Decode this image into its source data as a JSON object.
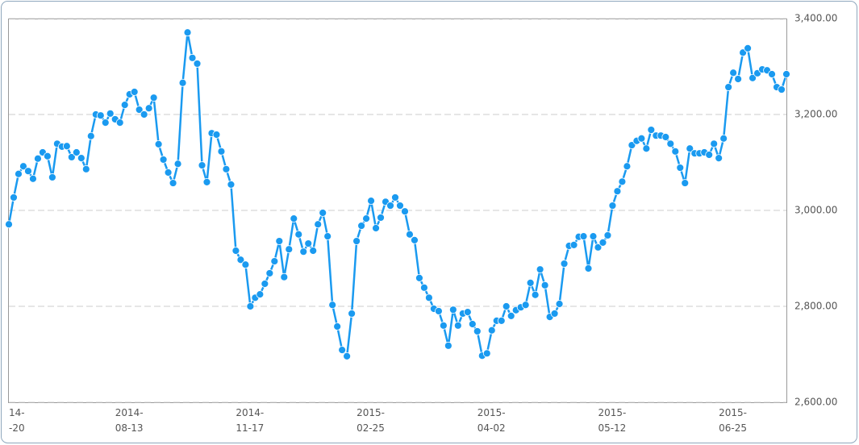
{
  "chart_data": {
    "type": "line",
    "categories": [
      "14-\n-20",
      null,
      null,
      null,
      null,
      null,
      null,
      null,
      null,
      null,
      null,
      null,
      null,
      null,
      null,
      null,
      null,
      null,
      null,
      null,
      null,
      null,
      null,
      null,
      null,
      "2014-\n08-13",
      null,
      null,
      null,
      null,
      null,
      null,
      null,
      null,
      null,
      null,
      null,
      null,
      null,
      null,
      null,
      null,
      null,
      null,
      null,
      null,
      null,
      null,
      null,
      null,
      "2014-\n11-17",
      null,
      null,
      null,
      null,
      null,
      null,
      null,
      null,
      null,
      null,
      null,
      null,
      null,
      null,
      null,
      null,
      null,
      null,
      null,
      null,
      null,
      null,
      null,
      null,
      "2015-\n02-25",
      null,
      null,
      null,
      null,
      null,
      null,
      null,
      null,
      null,
      null,
      null,
      null,
      null,
      null,
      null,
      null,
      null,
      null,
      null,
      null,
      null,
      null,
      null,
      null,
      "2015-\n04-02",
      null,
      null,
      null,
      null,
      null,
      null,
      null,
      null,
      null,
      null,
      null,
      null,
      null,
      null,
      null,
      null,
      null,
      null,
      null,
      null,
      null,
      null,
      null,
      null,
      "2015-\n05-12",
      null,
      null,
      null,
      null,
      null,
      null,
      null,
      null,
      null,
      null,
      null,
      null,
      null,
      null,
      null,
      null,
      null,
      null,
      null,
      null,
      null,
      null,
      null,
      null,
      "2015-\n06-25",
      null,
      null,
      null,
      null,
      null,
      null,
      null,
      null,
      null,
      null,
      null
    ],
    "series": [
      {
        "color": "#1a9af0",
        "values": [
          2971,
          3027,
          3076,
          3092,
          3082,
          3066,
          3108,
          3121,
          3113,
          3069,
          3139,
          3133,
          3134,
          3111,
          3121,
          3109,
          3086,
          3155,
          3200,
          3198,
          3183,
          3202,
          3190,
          3183,
          3220,
          3242,
          3247,
          3210,
          3200,
          3213,
          3235,
          3138,
          3106,
          3079,
          3057,
          3097,
          3266,
          3371,
          3318,
          3306,
          3094,
          3059,
          3161,
          3158,
          3123,
          3086,
          3054,
          2916,
          2897,
          2887,
          2800,
          2818,
          2825,
          2847,
          2869,
          2894,
          2936,
          2861,
          2919,
          2983,
          2950,
          2914,
          2931,
          2916,
          2971,
          2995,
          2946,
          2803,
          2758,
          2709,
          2696,
          2785,
          2936,
          2968,
          2983,
          3020,
          2963,
          2985,
          3018,
          3010,
          3027,
          3010,
          2998,
          2950,
          2938,
          2859,
          2839,
          2818,
          2795,
          2790,
          2760,
          2718,
          2793,
          2760,
          2785,
          2788,
          2763,
          2748,
          2697,
          2702,
          2750,
          2770,
          2770,
          2800,
          2780,
          2792,
          2798,
          2803,
          2849,
          2824,
          2877,
          2844,
          2778,
          2785,
          2805,
          2889,
          2926,
          2928,
          2945,
          2946,
          2879,
          2946,
          2923,
          2933,
          2948,
          3010,
          3040,
          3060,
          3092,
          3136,
          3145,
          3150,
          3129,
          3168,
          3156,
          3156,
          3153,
          3139,
          3123,
          3089,
          3057,
          3129,
          3119,
          3119,
          3121,
          3116,
          3139,
          3109,
          3150,
          3257,
          3287,
          3274,
          3329,
          3338,
          3276,
          3286,
          3294,
          3292,
          3284,
          3257,
          3252,
          3284
        ]
      }
    ],
    "ylim": [
      2600,
      3400
    ],
    "yticks": [
      {
        "value": 2600,
        "label": "2,600.00"
      },
      {
        "value": 2800,
        "label": "2,800.00"
      },
      {
        "value": 3000,
        "label": "3,000.00"
      },
      {
        "value": 3200,
        "label": "3,200.00"
      },
      {
        "value": 3400,
        "label": "3,400.00"
      }
    ],
    "grid": true
  }
}
